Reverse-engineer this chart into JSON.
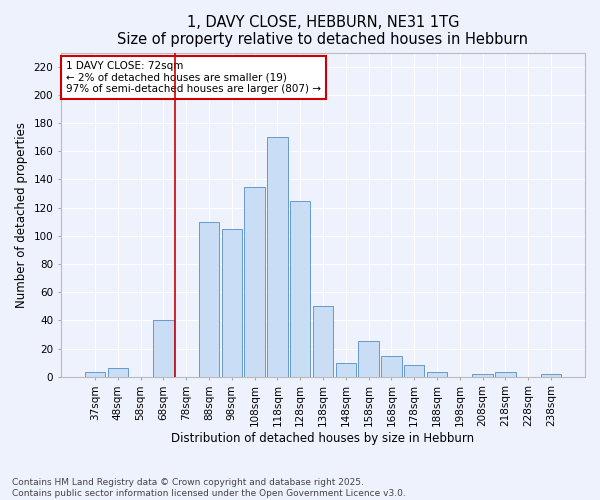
{
  "title": "1, DAVY CLOSE, HEBBURN, NE31 1TG",
  "subtitle": "Size of property relative to detached houses in Hebburn",
  "xlabel": "Distribution of detached houses by size in Hebburn",
  "ylabel": "Number of detached properties",
  "categories": [
    "37sqm",
    "48sqm",
    "58sqm",
    "68sqm",
    "78sqm",
    "88sqm",
    "98sqm",
    "108sqm",
    "118sqm",
    "128sqm",
    "138sqm",
    "148sqm",
    "158sqm",
    "168sqm",
    "178sqm",
    "188sqm",
    "198sqm",
    "208sqm",
    "218sqm",
    "228sqm",
    "238sqm"
  ],
  "values": [
    3,
    6,
    0,
    40,
    0,
    110,
    105,
    135,
    170,
    125,
    50,
    10,
    25,
    15,
    8,
    3,
    0,
    2,
    3,
    0,
    2
  ],
  "bar_color": "#c9ddf5",
  "bar_edge_color": "#6699cc",
  "vline_x_index": 3.5,
  "vline_color": "#cc0000",
  "annotation_text": "1 DAVY CLOSE: 72sqm\n← 2% of detached houses are smaller (19)\n97% of semi-detached houses are larger (807) →",
  "annotation_box_color": "#ffffff",
  "annotation_box_edge_color": "#cc0000",
  "ylim": [
    0,
    230
  ],
  "yticks": [
    0,
    20,
    40,
    60,
    80,
    100,
    120,
    140,
    160,
    180,
    200,
    220
  ],
  "background_color": "#eef2fc",
  "grid_color": "#ffffff",
  "footer": "Contains HM Land Registry data © Crown copyright and database right 2025.\nContains public sector information licensed under the Open Government Licence v3.0.",
  "title_fontsize": 10.5,
  "subtitle_fontsize": 9.5,
  "axis_label_fontsize": 8.5,
  "tick_fontsize": 7.5,
  "annotation_fontsize": 7.5,
  "footer_fontsize": 6.5
}
